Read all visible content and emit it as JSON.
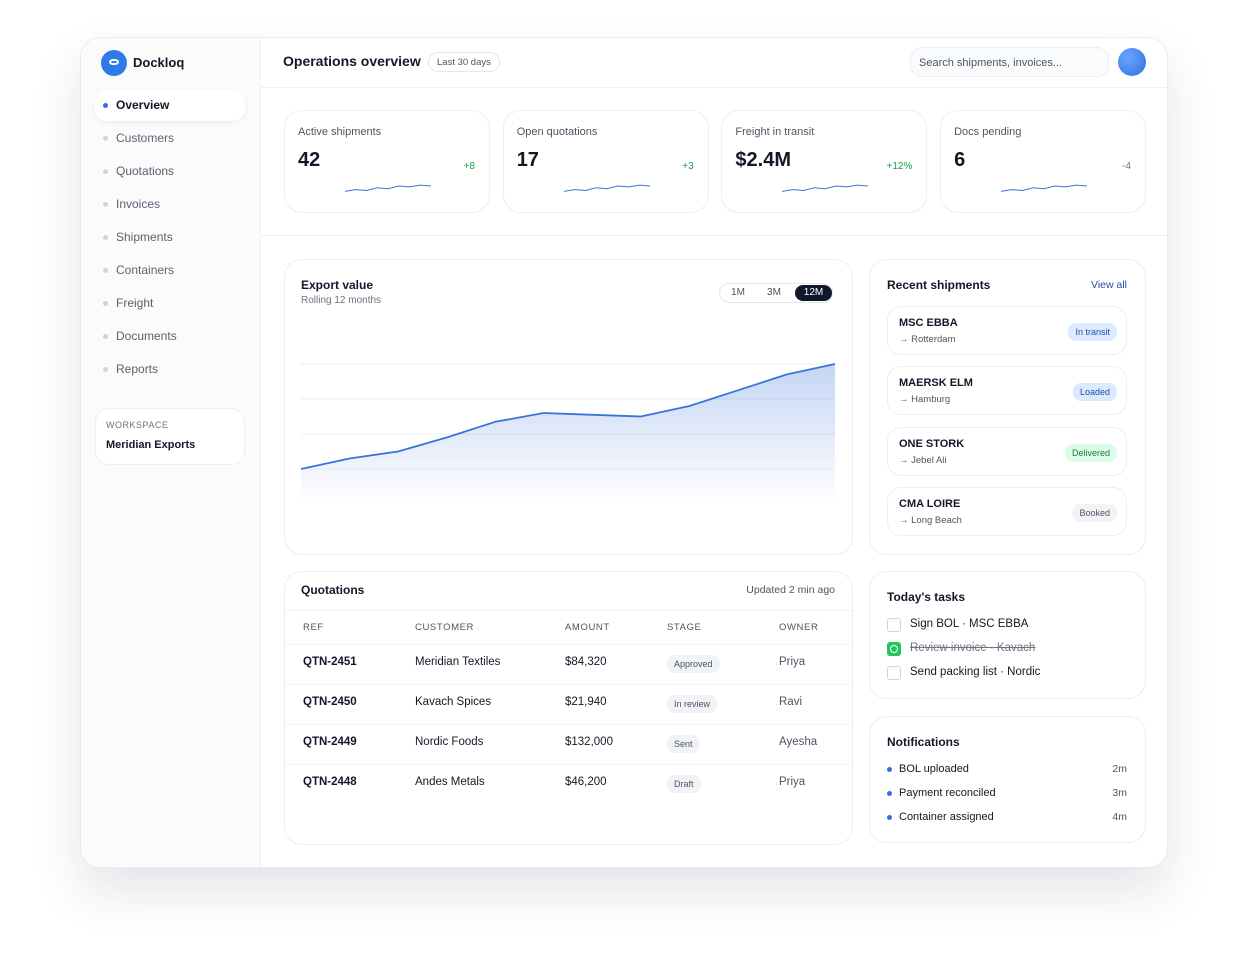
{
  "brand": "Dockloq",
  "nav": {
    "items": [
      "Overview",
      "Customers",
      "Quotations",
      "Invoices",
      "Shipments",
      "Containers",
      "Freight",
      "Documents",
      "Reports"
    ],
    "active": 0
  },
  "workspace": {
    "label": "WORKSPACE",
    "name": "Meridian Exports"
  },
  "header": {
    "title": "Operations overview",
    "range": "Last 30 days",
    "search_placeholder": "Search shipments, invoices..."
  },
  "kpis": {
    "trend_ylim": [
      0,
      10
    ],
    "items": [
      {
        "label": "Active shipments",
        "value": "42",
        "delta": "+8",
        "tone": "up",
        "trend": [
          2,
          3,
          2.5,
          4,
          3.5,
          5,
          4.5,
          5.5,
          5
        ]
      },
      {
        "label": "Open quotations",
        "value": "17",
        "delta": "+3",
        "tone": "up",
        "trend": [
          2,
          3,
          2.5,
          4,
          3.5,
          5,
          4.5,
          5.5,
          5
        ]
      },
      {
        "label": "Freight in transit",
        "value": "$2.4M",
        "delta": "+12%",
        "tone": "up",
        "trend": [
          2,
          3,
          2.5,
          4,
          3.5,
          5,
          4.5,
          5.5,
          5
        ]
      },
      {
        "label": "Docs pending",
        "value": "6",
        "delta": "-4",
        "tone": "flat",
        "trend": [
          2,
          3,
          2.5,
          4,
          3.5,
          5,
          4.5,
          5.5,
          5
        ]
      }
    ]
  },
  "export_chart": {
    "type": "area",
    "title": "Export value",
    "subtitle": "Rolling 12 months",
    "ranges": [
      "1M",
      "3M",
      "12M"
    ],
    "active_range": 2,
    "color": "#3b74d9",
    "ylim": [
      0,
      100
    ],
    "values": [
      20,
      26,
      30,
      38,
      47,
      52,
      51,
      50,
      56,
      65,
      74,
      80
    ]
  },
  "recent_shipments": {
    "title": "Recent shipments",
    "link": "View all",
    "items": [
      {
        "vessel": "MSC EBBA",
        "destination": "→ Rotterdam",
        "status": "In transit",
        "tone": "blue"
      },
      {
        "vessel": "MAERSK ELM",
        "destination": "→ Hamburg",
        "status": "Loaded",
        "tone": "blue"
      },
      {
        "vessel": "ONE STORK",
        "destination": "→ Jebel Ali",
        "status": "Delivered",
        "tone": "green"
      },
      {
        "vessel": "CMA LOIRE",
        "destination": "→ Long Beach",
        "status": "Booked",
        "tone": "gray"
      }
    ]
  },
  "quotations": {
    "title": "Quotations",
    "updated": "Updated 2 min ago",
    "columns": [
      "REF",
      "CUSTOMER",
      "AMOUNT",
      "STAGE",
      "OWNER"
    ],
    "rows": [
      [
        "QTN-2451",
        "Meridian Textiles",
        "$84,320",
        "Approved",
        "Priya"
      ],
      [
        "QTN-2450",
        "Kavach Spices",
        "$21,940",
        "In review",
        "Ravi"
      ],
      [
        "QTN-2449",
        "Nordic Foods",
        "$132,000",
        "Sent",
        "Ayesha"
      ],
      [
        "QTN-2448",
        "Andes Metals",
        "$46,200",
        "Draft",
        "Priya"
      ]
    ]
  },
  "tasks": {
    "title": "Today's tasks",
    "items": [
      {
        "text": "Sign BOL · MSC EBBA",
        "done": false
      },
      {
        "text": "Review invoice · Kavach",
        "done": true
      },
      {
        "text": "Send packing list · Nordic",
        "done": false
      }
    ]
  },
  "notifications": {
    "title": "Notifications",
    "items": [
      {
        "text": "BOL uploaded",
        "time": "2m"
      },
      {
        "text": "Payment reconciled",
        "time": "3m"
      },
      {
        "text": "Container assigned",
        "time": "4m"
      }
    ]
  }
}
